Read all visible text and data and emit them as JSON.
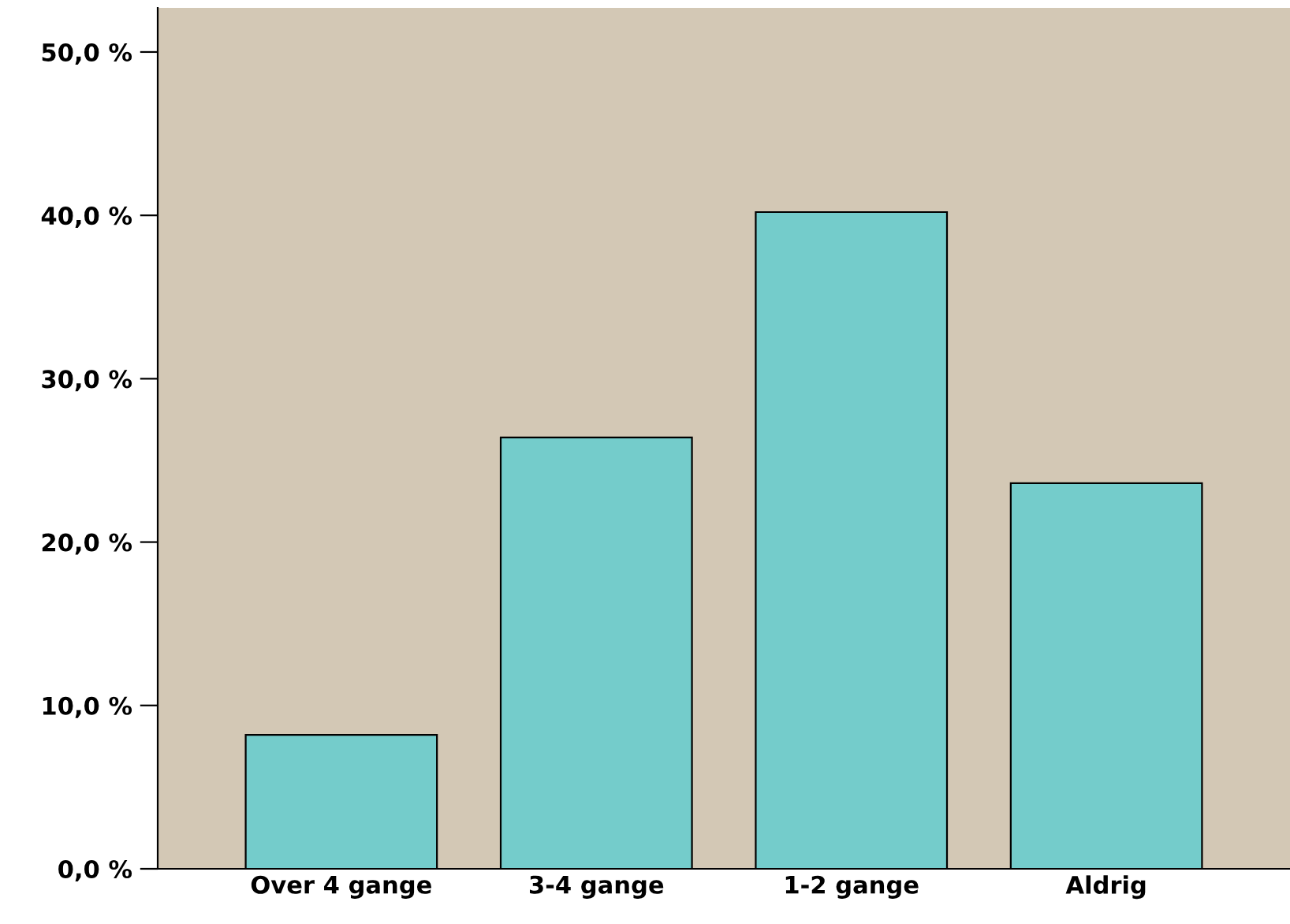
{
  "chart_data": {
    "type": "bar",
    "categories": [
      "Over 4 gange",
      "3-4 gange",
      "1-2 gange",
      "Aldrig"
    ],
    "values": [
      8.2,
      26.4,
      40.2,
      23.6
    ],
    "color": "#74cccb",
    "ylim": [
      0,
      52.7
    ],
    "yticks": [
      {
        "value": 0,
        "label": "0,0 %"
      },
      {
        "value": 10,
        "label": "10,0 %"
      },
      {
        "value": 20,
        "label": "20,0 %"
      },
      {
        "value": 30,
        "label": "30,0 %"
      },
      {
        "value": 40,
        "label": "40,0 %"
      },
      {
        "value": 50,
        "label": "50,0 %"
      }
    ],
    "grid": false
  }
}
